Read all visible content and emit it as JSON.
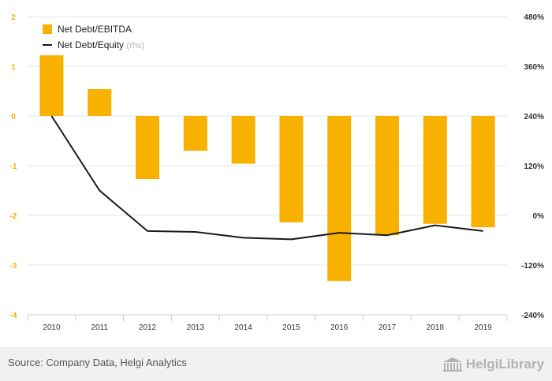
{
  "chart_data": {
    "type": "bar+line",
    "categories": [
      "2010",
      "2011",
      "2012",
      "2013",
      "2014",
      "2015",
      "2016",
      "2017",
      "2018",
      "2019"
    ],
    "series": [
      {
        "name": "Net Debt/EBITDA",
        "kind": "bar",
        "axis": "left",
        "color": "#f9b100",
        "values": [
          1.22,
          0.54,
          -1.27,
          -0.7,
          -0.96,
          -2.14,
          -3.32,
          -2.4,
          -2.17,
          -2.24
        ]
      },
      {
        "name": "Net Debt/Equity",
        "kind": "line",
        "axis": "right",
        "color": "#1a1a1a",
        "values": [
          240,
          60,
          -38,
          -40,
          -54,
          -58,
          -42,
          -48,
          -24,
          -38
        ]
      }
    ],
    "left_axis": {
      "ylim": [
        -4,
        2
      ],
      "ticks": [
        -4,
        -3,
        -2,
        -1,
        0,
        1,
        2
      ],
      "tick_labels": [
        "-4",
        "-3",
        "-2",
        "-1",
        "0",
        "1",
        "2"
      ],
      "tick_color": "#f9b100"
    },
    "right_axis": {
      "ylim": [
        -240,
        480
      ],
      "ticks": [
        -240,
        -120,
        0,
        120,
        240,
        360,
        480
      ],
      "tick_labels": [
        "-240%",
        "-120%",
        "0%",
        "120%",
        "240%",
        "360%",
        "480%"
      ]
    },
    "legend": {
      "position": "top-left",
      "items": [
        {
          "label": "Net Debt/EBITDA",
          "suffix": ""
        },
        {
          "label": "Net Debt/Equity",
          "suffix": "(rhs)"
        }
      ]
    },
    "grid": true
  },
  "footer": {
    "source": "Source: Company Data, Helgi Analytics",
    "brand": "HelgiLibrary"
  }
}
